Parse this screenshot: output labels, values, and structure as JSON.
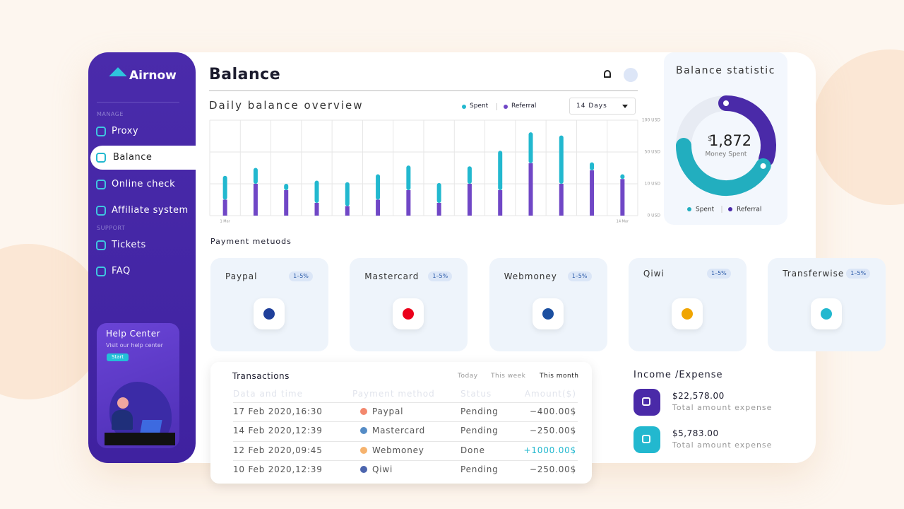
{
  "sidebar": {
    "logo": "Airnow",
    "sections": [
      {
        "label": "MANAGE",
        "items": [
          "Proxy",
          "Balance",
          "Online check",
          "Affiliate system"
        ]
      },
      {
        "label": "SUPPORT",
        "items": [
          "Tickets",
          "FAQ"
        ]
      }
    ],
    "help": {
      "title": "Help Center",
      "text": "Visit our help center",
      "button": "Start"
    }
  },
  "header": {
    "title": "Balance"
  },
  "chart_data": [
    {
      "type": "bar",
      "stacked": true,
      "title": "Daily balance overview",
      "range_selector": "14 Days",
      "categories": [
        "1 Mar",
        null,
        null,
        null,
        null,
        null,
        null,
        null,
        null,
        null,
        null,
        null,
        null,
        "14 Mar"
      ],
      "series": [
        {
          "name": "Spent",
          "color": "#22b8cf",
          "values": [
            15,
            20,
            2,
            10,
            9,
            17,
            25,
            7,
            22,
            44,
            45,
            66,
            10,
            6
          ]
        },
        {
          "name": "Referral",
          "color": "#7047c6",
          "values": [
            5,
            10,
            8,
            4,
            3,
            5,
            8,
            4,
            10,
            8,
            36,
            10,
            27,
            16
          ]
        }
      ],
      "ylim": [
        0,
        100
      ],
      "yticks": [
        {
          "value": 0,
          "label": "0 USD"
        },
        {
          "value": 10,
          "label": "10 USD"
        },
        {
          "value": 50,
          "label": "50 USD"
        },
        {
          "value": 100,
          "label": "100 USD"
        }
      ],
      "grid": true
    },
    {
      "type": "donut",
      "title": "Balance statistic",
      "currency": "$",
      "center_value": "1,872",
      "center_label": "Money Spent",
      "series": [
        {
          "name": "Spent",
          "color": "#22aebf",
          "value": 42
        },
        {
          "name": "Referral",
          "color": "#4a2aa8",
          "value": 30
        }
      ]
    }
  ],
  "payment_methods": {
    "title": "Payment metuods",
    "items": [
      {
        "name": "Paypal",
        "fee": "1–5%"
      },
      {
        "name": "Mastercard",
        "fee": "1–5%"
      },
      {
        "name": "Webmoney",
        "fee": "1–5%"
      },
      {
        "name": "Qiwi",
        "fee": "1–5%"
      },
      {
        "name": "Transferwise",
        "fee": "1–5%"
      }
    ]
  },
  "transactions": {
    "title": "Transactions",
    "tabs": [
      "Today",
      "This week",
      "This month"
    ],
    "columns": [
      "Data and time",
      "Payment method",
      "Status",
      "Amount($)"
    ],
    "rows": [
      [
        "17 Feb 2020,16:30",
        "Paypal",
        "Pending",
        "−400.00$"
      ],
      [
        "14 Feb 2020,12:39",
        "Mastercard",
        "Pending",
        "−250.00$"
      ],
      [
        "12 Feb 2020,09:45",
        "Webmoney",
        "Done",
        "+1000.00$"
      ],
      [
        "10 Feb 2020,12:39",
        "Qiwi",
        "Pending",
        "−250.00$"
      ]
    ]
  },
  "income_expense": {
    "title": "Income /Expense",
    "items": [
      {
        "amount": "$22,578.00",
        "label": "Total amount expense"
      },
      {
        "amount": "$5,783.00",
        "label": "Total amount expense"
      }
    ]
  }
}
